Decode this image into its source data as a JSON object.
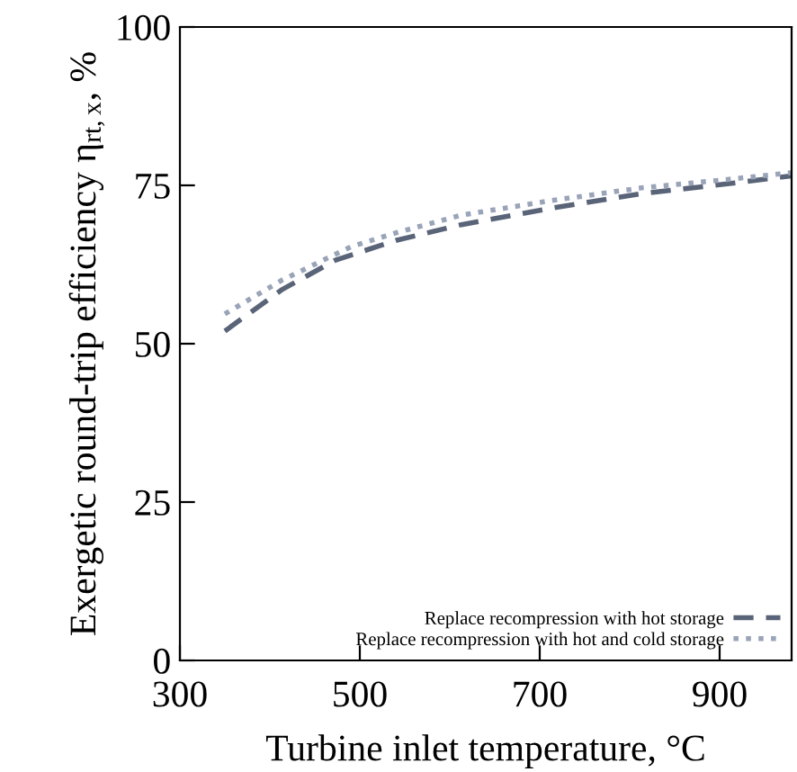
{
  "chart_data": {
    "type": "line",
    "xlabel": "Turbine inlet temperature, °C",
    "ylabel": "Exergetic round-trip efficiency η$_{rt,x}$, %",
    "xlim": [
      300,
      980
    ],
    "ylim": [
      0,
      100
    ],
    "xticks": [
      300,
      500,
      700,
      900
    ],
    "yticks": [
      0,
      25,
      50,
      75,
      100
    ],
    "grid": false,
    "legend": "bottom right",
    "series": [
      {
        "name": "Replace recompression with hot storage",
        "color": "#5a6478",
        "line_style": "dashed",
        "x": [
          350,
          413,
          473,
          540,
          613,
          713,
          813,
          900,
          980
        ],
        "values": [
          52.0,
          58.5,
          63.2,
          66.3,
          68.8,
          71.4,
          73.7,
          75.1,
          76.5
        ]
      },
      {
        "name": "Replace recompression with hot and cold storage",
        "color": "#9aa4b8",
        "line_style": "dotted",
        "x": [
          350,
          413,
          490,
          540,
          613,
          713,
          813,
          900,
          980
        ],
        "values": [
          54.7,
          60.0,
          65.3,
          67.5,
          70.3,
          72.6,
          74.6,
          75.8,
          77.0
        ]
      }
    ]
  }
}
